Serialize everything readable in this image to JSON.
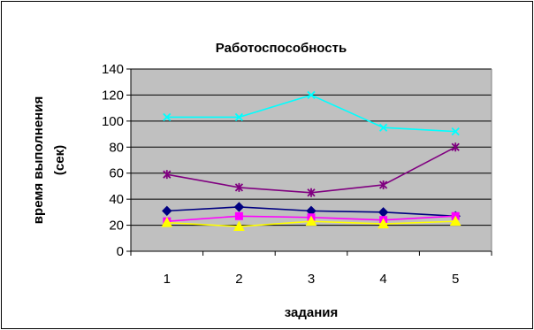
{
  "chart_data": {
    "type": "line",
    "title": "Работоспособность",
    "xlabel": "задания",
    "ylabel_line1": "время выполнения",
    "ylabel_line2": "(сек)",
    "categories": [
      "1",
      "2",
      "3",
      "4",
      "5"
    ],
    "ylim": [
      0,
      140
    ],
    "ytick_step": 20,
    "y_ticks": [
      "0",
      "20",
      "40",
      "60",
      "80",
      "100",
      "120",
      "140"
    ],
    "grid": true,
    "plot_background": "#c0c0c0",
    "series": [
      {
        "values": [
          31,
          34,
          31,
          30,
          27
        ],
        "color": "#000080",
        "marker": "diamond"
      },
      {
        "values": [
          23,
          27,
          26,
          24,
          27
        ],
        "color": "#ff00ff",
        "marker": "square"
      },
      {
        "values": [
          22,
          19,
          23,
          21,
          23
        ],
        "color": "#ffff00",
        "marker": "triangle"
      },
      {
        "values": [
          103,
          103,
          120,
          95,
          92
        ],
        "color": "#00ffff",
        "marker": "x"
      },
      {
        "values": [
          59,
          49,
          45,
          51,
          80
        ],
        "color": "#800080",
        "marker": "star"
      }
    ]
  }
}
